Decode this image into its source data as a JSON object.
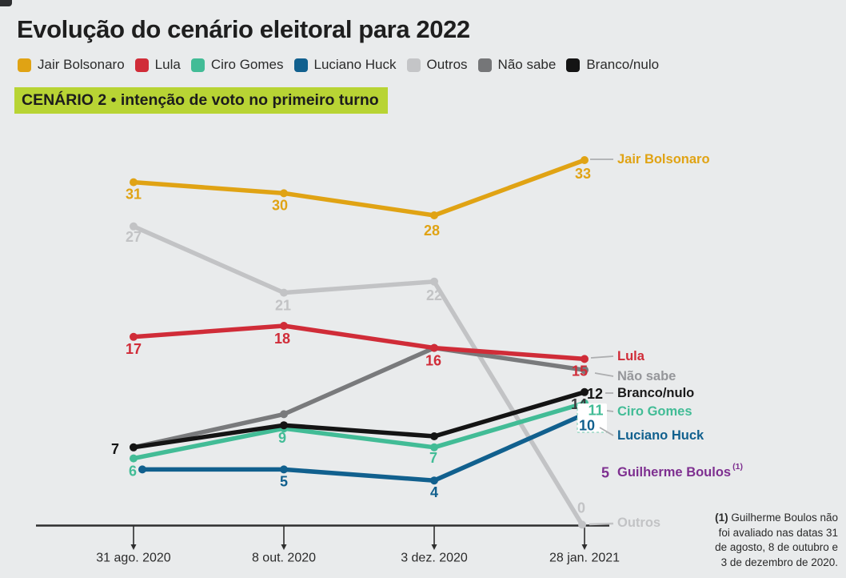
{
  "page": {
    "background": "#E9EBEC"
  },
  "header": {
    "title": "Evolução do cenário eleitoral para 2022",
    "scenario_label": "CENÁRIO 2 • intenção de voto no primeiro turno",
    "scenario_bg": "#B8D434"
  },
  "legend": [
    {
      "label": "Jair Bolsonaro",
      "color": "#E0A314"
    },
    {
      "label": "Lula",
      "color": "#D02C38"
    },
    {
      "label": "Ciro Gomes",
      "color": "#42BC96"
    },
    {
      "label": "Luciano Huck",
      "color": "#11608E"
    },
    {
      "label": "Outros",
      "color": "#C4C5C7"
    },
    {
      "label": "Não sabe",
      "color": "#757678"
    },
    {
      "label": "Branco/nulo",
      "color": "#141414"
    }
  ],
  "chart_data": {
    "type": "line",
    "categories": [
      "31 ago. 2020",
      "8 out. 2020",
      "3 dez. 2020",
      "28 jan. 2021"
    ],
    "series": [
      {
        "name": "Jair Bolsonaro",
        "color": "#E0A314",
        "values": [
          31,
          30,
          28,
          33
        ]
      },
      {
        "name": "Lula",
        "color": "#D02C38",
        "values": [
          17,
          18,
          16,
          15
        ]
      },
      {
        "name": "Ciro Gomes",
        "color": "#42BC96",
        "values": [
          6,
          9,
          7,
          11
        ]
      },
      {
        "name": "Luciano Huck",
        "color": "#11608E",
        "values": [
          5,
          5,
          4,
          10
        ]
      },
      {
        "name": "Outros",
        "color": "#C2C3C5",
        "values": [
          27,
          21,
          22,
          0
        ]
      },
      {
        "name": "Não sabe",
        "color": "#797A7C",
        "values": [
          7,
          10,
          16,
          14
        ]
      },
      {
        "name": "Branco/nulo",
        "color": "#141414",
        "values": [
          7,
          9,
          8,
          12
        ]
      },
      {
        "name": "Guilherme Boulos",
        "color": "#7E2F90",
        "values": [
          null,
          null,
          null,
          5
        ]
      }
    ],
    "ylim": [
      0,
      35
    ],
    "grid": false,
    "legend_position": "top"
  },
  "annotations": {
    "boulos_superscript": "(1)",
    "footnote_marker": "(1)",
    "footnote_lines": [
      "Guilherme Boulos não",
      "foi avaliado nas datas 31",
      "de agosto, 8 de outubro e",
      "3 de dezembro de 2020."
    ]
  }
}
